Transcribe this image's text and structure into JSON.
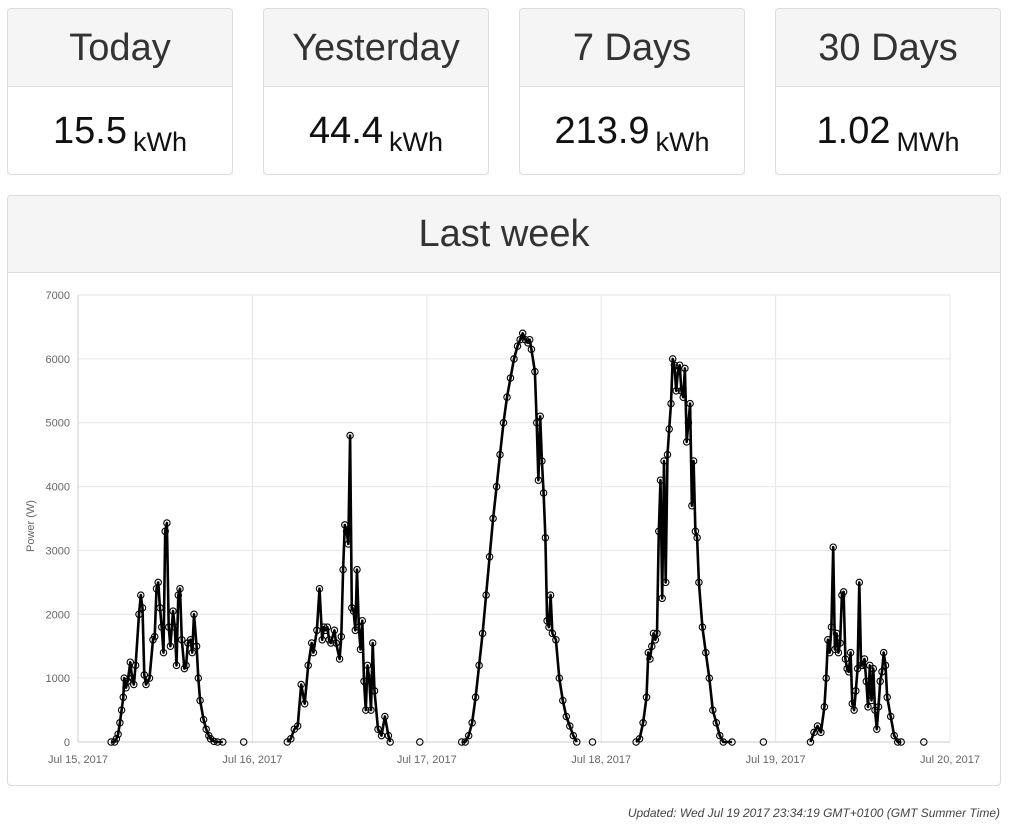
{
  "stats": [
    {
      "title": "Today",
      "value": "15.5",
      "unit": "kWh"
    },
    {
      "title": "Yesterday",
      "value": "44.4",
      "unit": "kWh"
    },
    {
      "title": "7 Days",
      "value": "213.9",
      "unit": "kWh"
    },
    {
      "title": "30 Days",
      "value": "1.02",
      "unit": "MWh"
    }
  ],
  "chart_panel": {
    "title": "Last week"
  },
  "updated_text": "Updated: Wed Jul 19 2017 23:34:19 GMT+0100 (GMT Summer Time)",
  "colors": {
    "line": "#000000",
    "grid": "#e6e6e6",
    "header_bg": "#f5f5f5",
    "border": "#dcdcdc"
  },
  "chart_data": {
    "type": "line",
    "title": "",
    "xlabel": "",
    "ylabel": "Power (W)",
    "ylim": [
      0,
      7000
    ],
    "yticks": [
      0,
      1000,
      2000,
      3000,
      4000,
      5000,
      6000,
      7000
    ],
    "ytick_labels": [
      "0",
      "1000",
      "2000",
      "3000",
      "4000",
      "5000",
      "6000",
      "7000"
    ],
    "xlim": [
      15,
      20
    ],
    "xticks": [
      15,
      16,
      17,
      18,
      19,
      20
    ],
    "xtick_labels": [
      "Jul 15, 2017",
      "Jul 16, 2017",
      "Jul 17, 2017",
      "Jul 18, 2017",
      "Jul 19, 2017",
      "Jul 20, 2017"
    ],
    "x_units": "days in July 2017 (fractional)",
    "grid": true,
    "series": [
      {
        "values": [
          [
            15.19,
            0
          ],
          [
            15.21,
            0
          ],
          [
            15.22,
            50
          ],
          [
            15.23,
            120
          ],
          [
            15.24,
            300
          ],
          [
            15.25,
            500
          ],
          [
            15.26,
            700
          ],
          [
            15.265,
            1000
          ],
          [
            15.275,
            850
          ],
          [
            15.285,
            950
          ],
          [
            15.3,
            1250
          ],
          [
            15.31,
            1000
          ],
          [
            15.32,
            900
          ],
          [
            15.33,
            1200
          ],
          [
            15.35,
            2000
          ],
          [
            15.36,
            2300
          ],
          [
            15.37,
            2100
          ],
          [
            15.38,
            1050
          ],
          [
            15.39,
            900
          ],
          [
            15.41,
            1000
          ],
          [
            15.43,
            1600
          ],
          [
            15.44,
            1650
          ],
          [
            15.45,
            2400
          ],
          [
            15.46,
            2500
          ],
          [
            15.47,
            2100
          ],
          [
            15.48,
            1800
          ],
          [
            15.49,
            1400
          ],
          [
            15.5,
            3300
          ],
          [
            15.51,
            3430
          ],
          [
            15.52,
            1800
          ],
          [
            15.53,
            1500
          ],
          [
            15.545,
            2050
          ],
          [
            15.555,
            1800
          ],
          [
            15.565,
            1200
          ],
          [
            15.575,
            2300
          ],
          [
            15.585,
            2400
          ],
          [
            15.595,
            1600
          ],
          [
            15.61,
            1150
          ],
          [
            15.62,
            1200
          ],
          [
            15.63,
            1550
          ],
          [
            15.645,
            1600
          ],
          [
            15.655,
            1400
          ],
          [
            15.665,
            2000
          ],
          [
            15.68,
            1500
          ],
          [
            15.69,
            1000
          ],
          [
            15.7,
            650
          ],
          [
            15.72,
            350
          ],
          [
            15.735,
            200
          ],
          [
            15.75,
            100
          ],
          [
            15.76,
            50
          ],
          [
            15.78,
            10
          ],
          [
            15.8,
            0
          ],
          [
            15.83,
            0
          ],
          [
            15.95,
            0
          ]
        ]
      },
      {
        "values": [
          [
            16.2,
            0
          ],
          [
            16.22,
            50
          ],
          [
            16.24,
            200
          ],
          [
            16.26,
            250
          ],
          [
            16.28,
            900
          ],
          [
            16.3,
            600
          ],
          [
            16.32,
            1200
          ],
          [
            16.34,
            1550
          ],
          [
            16.35,
            1400
          ],
          [
            16.37,
            1750
          ],
          [
            16.385,
            2400
          ],
          [
            16.4,
            1600
          ],
          [
            16.41,
            1800
          ],
          [
            16.42,
            1750
          ],
          [
            16.43,
            1800
          ],
          [
            16.44,
            1600
          ],
          [
            16.45,
            1550
          ],
          [
            16.47,
            1750
          ],
          [
            16.48,
            1550
          ],
          [
            16.5,
            1300
          ],
          [
            16.51,
            1650
          ],
          [
            16.52,
            2700
          ],
          [
            16.53,
            3400
          ],
          [
            16.54,
            3300
          ],
          [
            16.55,
            3100
          ],
          [
            16.56,
            4800
          ],
          [
            16.57,
            2100
          ],
          [
            16.58,
            2050
          ],
          [
            16.59,
            1750
          ],
          [
            16.6,
            2700
          ],
          [
            16.61,
            1800
          ],
          [
            16.62,
            1450
          ],
          [
            16.63,
            1900
          ],
          [
            16.64,
            950
          ],
          [
            16.65,
            500
          ],
          [
            16.66,
            1200
          ],
          [
            16.67,
            1000
          ],
          [
            16.68,
            500
          ],
          [
            16.69,
            1550
          ],
          [
            16.7,
            800
          ],
          [
            16.72,
            200
          ],
          [
            16.74,
            100
          ],
          [
            16.76,
            400
          ],
          [
            16.78,
            100
          ],
          [
            16.79,
            0
          ],
          [
            16.96,
            0
          ]
        ]
      },
      {
        "values": [
          [
            17.2,
            0
          ],
          [
            17.22,
            0
          ],
          [
            17.24,
            100
          ],
          [
            17.26,
            300
          ],
          [
            17.28,
            700
          ],
          [
            17.3,
            1200
          ],
          [
            17.32,
            1700
          ],
          [
            17.34,
            2300
          ],
          [
            17.36,
            2900
          ],
          [
            17.38,
            3500
          ],
          [
            17.4,
            4000
          ],
          [
            17.42,
            4500
          ],
          [
            17.44,
            5000
          ],
          [
            17.46,
            5400
          ],
          [
            17.48,
            5700
          ],
          [
            17.5,
            6000
          ],
          [
            17.52,
            6200
          ],
          [
            17.535,
            6300
          ],
          [
            17.55,
            6400
          ],
          [
            17.565,
            6300
          ],
          [
            17.58,
            6250
          ],
          [
            17.59,
            6300
          ],
          [
            17.6,
            6150
          ],
          [
            17.62,
            5800
          ],
          [
            17.63,
            5000
          ],
          [
            17.64,
            4100
          ],
          [
            17.65,
            5100
          ],
          [
            17.66,
            4400
          ],
          [
            17.67,
            3900
          ],
          [
            17.68,
            3200
          ],
          [
            17.69,
            1900
          ],
          [
            17.7,
            1800
          ],
          [
            17.71,
            2300
          ],
          [
            17.72,
            1700
          ],
          [
            17.74,
            1600
          ],
          [
            17.76,
            1000
          ],
          [
            17.78,
            650
          ],
          [
            17.8,
            400
          ],
          [
            17.82,
            250
          ],
          [
            17.84,
            100
          ],
          [
            17.86,
            0
          ],
          [
            17.95,
            0
          ]
        ]
      },
      {
        "values": [
          [
            18.2,
            0
          ],
          [
            18.22,
            50
          ],
          [
            18.24,
            300
          ],
          [
            18.26,
            700
          ],
          [
            18.27,
            1400
          ],
          [
            18.28,
            1300
          ],
          [
            18.29,
            1500
          ],
          [
            18.3,
            1700
          ],
          [
            18.31,
            1600
          ],
          [
            18.32,
            1700
          ],
          [
            18.33,
            3300
          ],
          [
            18.34,
            4100
          ],
          [
            18.35,
            2250
          ],
          [
            18.36,
            4400
          ],
          [
            18.37,
            2500
          ],
          [
            18.38,
            4500
          ],
          [
            18.39,
            4900
          ],
          [
            18.4,
            5300
          ],
          [
            18.41,
            6000
          ],
          [
            18.42,
            5900
          ],
          [
            18.43,
            5500
          ],
          [
            18.44,
            5800
          ],
          [
            18.45,
            5900
          ],
          [
            18.46,
            5500
          ],
          [
            18.47,
            5400
          ],
          [
            18.48,
            5850
          ],
          [
            18.49,
            4700
          ],
          [
            18.5,
            5000
          ],
          [
            18.51,
            5300
          ],
          [
            18.52,
            3700
          ],
          [
            18.53,
            4400
          ],
          [
            18.54,
            3300
          ],
          [
            18.55,
            3200
          ],
          [
            18.56,
            2500
          ],
          [
            18.58,
            1800
          ],
          [
            18.6,
            1400
          ],
          [
            18.62,
            1000
          ],
          [
            18.64,
            500
          ],
          [
            18.66,
            300
          ],
          [
            18.68,
            100
          ],
          [
            18.7,
            0
          ],
          [
            18.75,
            0
          ],
          [
            18.93,
            0
          ]
        ]
      },
      {
        "values": [
          [
            19.2,
            0
          ],
          [
            19.22,
            150
          ],
          [
            19.24,
            250
          ],
          [
            19.26,
            150
          ],
          [
            19.28,
            550
          ],
          [
            19.29,
            1000
          ],
          [
            19.3,
            1600
          ],
          [
            19.31,
            1400
          ],
          [
            19.32,
            1800
          ],
          [
            19.33,
            3050
          ],
          [
            19.34,
            1450
          ],
          [
            19.35,
            1700
          ],
          [
            19.36,
            1400
          ],
          [
            19.37,
            1550
          ],
          [
            19.38,
            2300
          ],
          [
            19.39,
            2350
          ],
          [
            19.4,
            1300
          ],
          [
            19.41,
            1150
          ],
          [
            19.42,
            1100
          ],
          [
            19.43,
            1400
          ],
          [
            19.44,
            600
          ],
          [
            19.45,
            500
          ],
          [
            19.46,
            800
          ],
          [
            19.47,
            1150
          ],
          [
            19.48,
            2500
          ],
          [
            19.49,
            1200
          ],
          [
            19.5,
            1200
          ],
          [
            19.51,
            1300
          ],
          [
            19.52,
            950
          ],
          [
            19.53,
            550
          ],
          [
            19.54,
            1200
          ],
          [
            19.55,
            650
          ],
          [
            19.56,
            1150
          ],
          [
            19.57,
            500
          ],
          [
            19.58,
            200
          ],
          [
            19.59,
            550
          ],
          [
            19.6,
            950
          ],
          [
            19.61,
            1100
          ],
          [
            19.62,
            1400
          ],
          [
            19.63,
            1200
          ],
          [
            19.64,
            700
          ],
          [
            19.66,
            400
          ],
          [
            19.68,
            100
          ],
          [
            19.7,
            0
          ],
          [
            19.72,
            0
          ],
          [
            19.85,
            0
          ]
        ]
      }
    ]
  }
}
